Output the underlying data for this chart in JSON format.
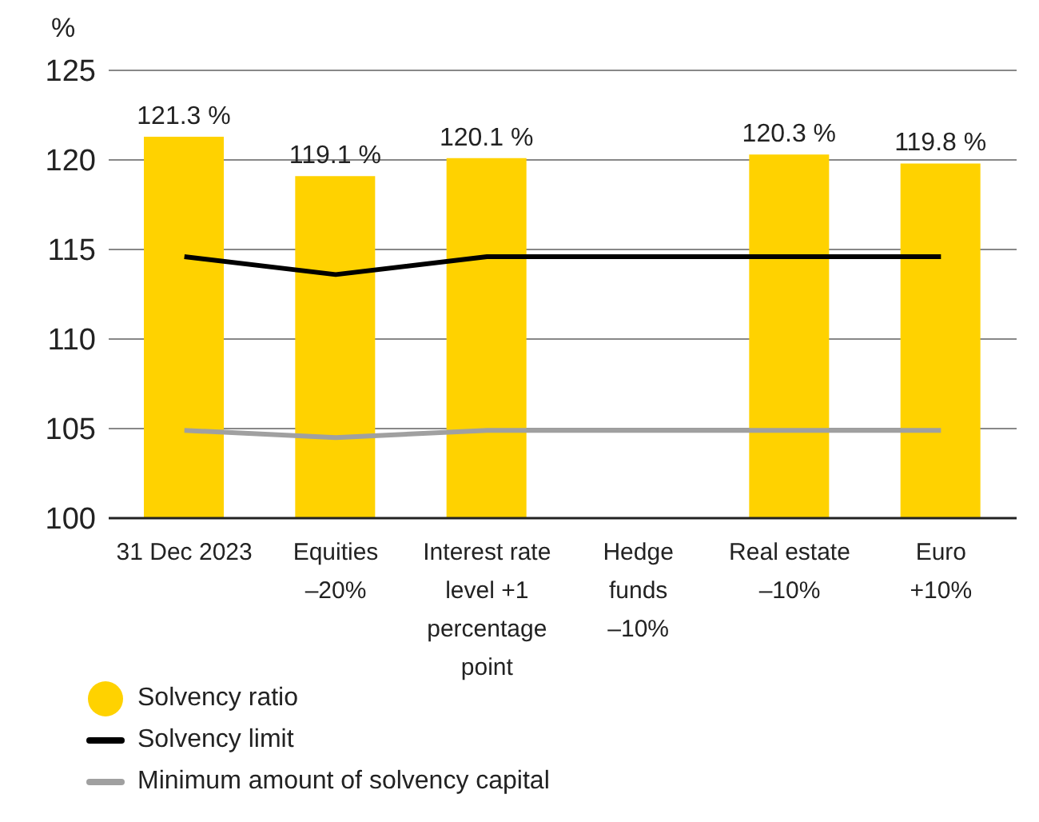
{
  "chart_data": {
    "type": "bar",
    "ylabel": "%",
    "categories": [
      "31 Dec 2023",
      "Equities\n–20%",
      "Interest rate\nlevel +1\npercentage\npoint",
      "Hedge\nfunds\n–10%",
      "Real estate\n–10%",
      "Euro\n+10%"
    ],
    "series": [
      {
        "name": "Solvency ratio",
        "color": "#ffd200",
        "values": [
          121.3,
          119.1,
          120.1,
          null,
          120.3,
          119.8
        ],
        "value_labels": [
          "121.3 %",
          "119.1 %",
          "120.1 %",
          null,
          "120.3 %",
          "119.8 %"
        ]
      },
      {
        "name": "Solvency limit",
        "type": "line",
        "color": "#000000",
        "values": [
          114.6,
          113.6,
          114.6,
          null,
          114.6,
          114.6
        ]
      },
      {
        "name": "Minimum amount of solvency capital",
        "type": "line",
        "color": "#a0a0a0",
        "values": [
          104.9,
          104.5,
          104.9,
          null,
          104.9,
          104.9
        ]
      }
    ],
    "ylim": [
      100,
      125
    ],
    "yticks": [
      100,
      105,
      110,
      115,
      120,
      125
    ],
    "grid": "y",
    "legend": "bottom left",
    "marker": "none",
    "line_style": "solid"
  }
}
